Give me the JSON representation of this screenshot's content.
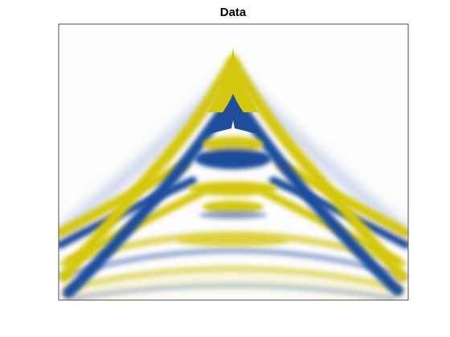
{
  "chart_data": {
    "type": "image",
    "title": "Data"
  }
}
